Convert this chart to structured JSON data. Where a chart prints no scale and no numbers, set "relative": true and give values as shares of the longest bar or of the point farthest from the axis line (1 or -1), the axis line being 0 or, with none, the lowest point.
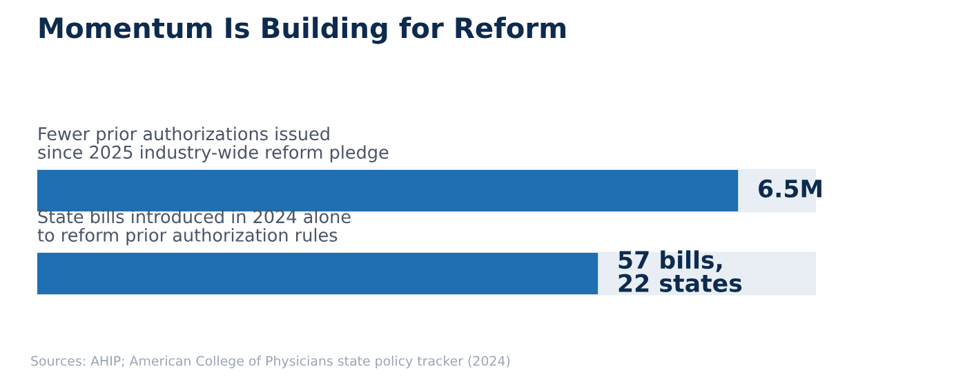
{
  "chart_data": {
    "type": "bar",
    "orientation": "horizontal",
    "relative": true,
    "title": "Momentum Is Building for Reform",
    "categories": [
      "Fewer prior authorizations issued\nsince 2025 industry-wide reform pledge",
      "State bills introduced in 2024 alone\nto reform prior authorization rules"
    ],
    "values": [
      1,
      0.8
    ],
    "color": "#1f6fb2",
    "annotations": [
      {
        "text": "6.5M",
        "x": 1,
        "y": "Fewer prior authorizations issued\nsince 2025 industry-wide reform pledge"
      },
      {
        "text": "57 bills,\n22 states",
        "x": 0.8,
        "y": "State bills introduced in 2024 alone\nto reform prior authorization rules"
      },
      "Sources: AHIP; American College of Physicians state policy tracker (2024)"
    ]
  }
}
